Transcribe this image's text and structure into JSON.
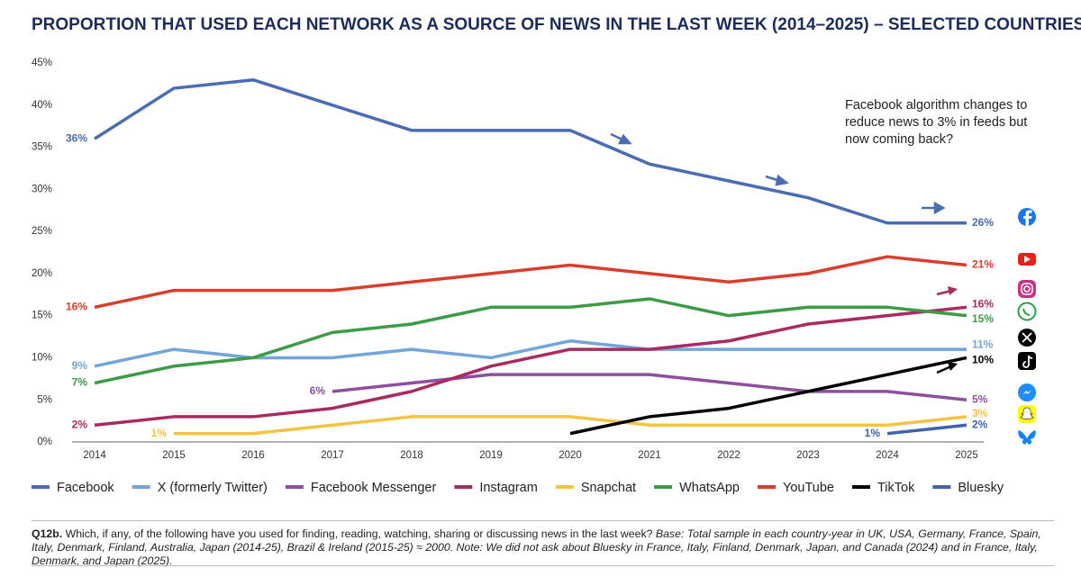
{
  "chart_data": {
    "type": "line",
    "title": "PROPORTION THAT USED EACH NETWORK AS A SOURCE OF NEWS IN THE LAST WEEK (2014–2025) – SELECTED COUNTRIES",
    "categories": [
      "2014",
      "2015",
      "2016",
      "2017",
      "2018",
      "2019",
      "2020",
      "2021",
      "2022",
      "2023",
      "2024",
      "2025"
    ],
    "ylim": [
      0,
      45
    ],
    "yticks": [
      {
        "value": 0,
        "label": "0%"
      },
      {
        "value": 5,
        "label": "5%"
      },
      {
        "value": 10,
        "label": "10%"
      },
      {
        "value": 15,
        "label": "15%"
      },
      {
        "value": 20,
        "label": "20%"
      },
      {
        "value": 25,
        "label": "25%"
      },
      {
        "value": 30,
        "label": "30%"
      },
      {
        "value": 35,
        "label": "35%"
      },
      {
        "value": 40,
        "label": "40%"
      },
      {
        "value": 45,
        "label": "45%"
      }
    ],
    "grid": false,
    "legend": "bottom",
    "annotation": [
      "Facebook algorithm changes to",
      "reduce news to 3% in feeds but",
      "now coming back?"
    ],
    "series": [
      {
        "name": "Facebook",
        "color": "#4a6cb3",
        "values": [
          36,
          42,
          43,
          40,
          37,
          37,
          37,
          33,
          31,
          29,
          26,
          26
        ],
        "value_labels": [
          "36%",
          null,
          null,
          null,
          null,
          null,
          null,
          null,
          null,
          null,
          null,
          "26%"
        ]
      },
      {
        "name": "X (formerly Twitter)",
        "color": "#72a5d9",
        "values": [
          9,
          11,
          10,
          10,
          11,
          10,
          12,
          11,
          11,
          11,
          11,
          11
        ],
        "value_labels": [
          "9%",
          null,
          null,
          null,
          null,
          null,
          null,
          null,
          null,
          null,
          null,
          "11%"
        ]
      },
      {
        "name": "Facebook Messenger",
        "color": "#8f4f9f",
        "values": [
          null,
          null,
          null,
          6,
          7,
          8,
          8,
          8,
          7,
          6,
          6,
          5
        ],
        "value_labels": [
          null,
          null,
          null,
          "6%",
          null,
          null,
          null,
          null,
          null,
          null,
          null,
          "5%"
        ]
      },
      {
        "name": "Instagram",
        "color": "#a82a5f",
        "values": [
          2,
          3,
          3,
          4,
          6,
          9,
          11,
          11,
          12,
          14,
          15,
          16
        ],
        "value_labels": [
          "2%",
          null,
          null,
          null,
          null,
          null,
          null,
          null,
          null,
          null,
          null,
          "16%"
        ]
      },
      {
        "name": "Snapchat",
        "color": "#f5c344",
        "values": [
          null,
          1,
          1,
          2,
          3,
          3,
          3,
          2,
          2,
          2,
          2,
          3
        ],
        "value_labels": [
          null,
          "1%",
          null,
          null,
          null,
          null,
          null,
          null,
          null,
          null,
          null,
          "3%"
        ]
      },
      {
        "name": "WhatsApp",
        "color": "#3d9b48",
        "values": [
          7,
          9,
          10,
          13,
          14,
          16,
          16,
          17,
          15,
          16,
          16,
          15
        ],
        "value_labels": [
          "7%",
          null,
          null,
          null,
          null,
          null,
          null,
          null,
          null,
          null,
          null,
          "15%"
        ]
      },
      {
        "name": "YouTube",
        "color": "#d93d2b",
        "values": [
          16,
          18,
          18,
          18,
          19,
          20,
          21,
          20,
          19,
          20,
          22,
          21
        ],
        "value_labels": [
          "16%",
          null,
          null,
          null,
          null,
          null,
          null,
          null,
          null,
          null,
          null,
          "21%"
        ]
      },
      {
        "name": "TikTok",
        "color": "#000000",
        "values": [
          null,
          null,
          null,
          null,
          null,
          null,
          1,
          3,
          4,
          6,
          8,
          10
        ],
        "value_labels": [
          null,
          null,
          null,
          null,
          null,
          null,
          null,
          null,
          null,
          null,
          null,
          "10%"
        ]
      },
      {
        "name": "Bluesky",
        "color": "#3f63ae",
        "values": [
          null,
          null,
          null,
          null,
          null,
          null,
          null,
          null,
          null,
          null,
          1,
          2
        ],
        "value_labels": [
          null,
          null,
          null,
          null,
          null,
          null,
          null,
          null,
          null,
          null,
          "1%",
          "2%"
        ]
      }
    ]
  },
  "footnote": {
    "label": "Q12b.",
    "question": " Which, if any, of the following have you used for finding, reading, watching, sharing or discussing news in the last week? ",
    "base": "Base: Total sample in each country-year in UK, USA, Germany, France, Spain, Italy, Denmark, Finland, Australia, Japan (2014-25), Brazil & Ireland (2015-25) ≈ 2000. Note: We did not ask about Bluesky in France, Italy, Finland, Denmark, Japan, and Canada (2024) and in France, Italy, Denmark, and Japan (2025)."
  }
}
